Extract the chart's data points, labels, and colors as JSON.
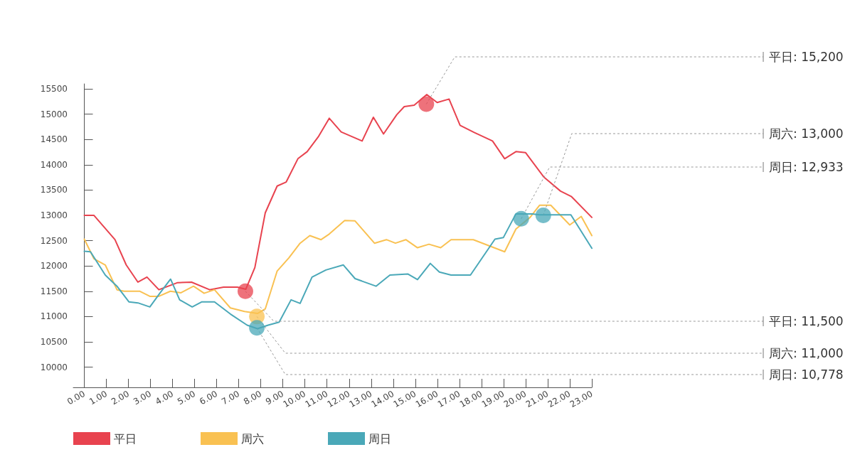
{
  "chart_data": {
    "type": "line",
    "xlim": [
      -0.5,
      23
    ],
    "ylim": [
      9600,
      15600
    ],
    "xticks": [
      {
        "value": 0,
        "label": "0.00"
      },
      {
        "value": 1,
        "label": "1.00"
      },
      {
        "value": 2,
        "label": "2.00"
      },
      {
        "value": 3,
        "label": "3.00"
      },
      {
        "value": 4,
        "label": "4.00"
      },
      {
        "value": 5,
        "label": "5.00"
      },
      {
        "value": 6,
        "label": "6.00"
      },
      {
        "value": 7,
        "label": "7.00"
      },
      {
        "value": 8,
        "label": "8.00"
      },
      {
        "value": 9,
        "label": "9.00"
      },
      {
        "value": 10,
        "label": "10.00"
      },
      {
        "value": 11,
        "label": "11.00"
      },
      {
        "value": 12,
        "label": "12.00"
      },
      {
        "value": 13,
        "label": "13.00"
      },
      {
        "value": 14,
        "label": "14.00"
      },
      {
        "value": 15,
        "label": "15.00"
      },
      {
        "value": 16,
        "label": "16.00"
      },
      {
        "value": 17,
        "label": "17.00"
      },
      {
        "value": 18,
        "label": "18.00"
      },
      {
        "value": 19,
        "label": "19.00"
      },
      {
        "value": 20,
        "label": "20.00"
      },
      {
        "value": 21,
        "label": "21.00"
      },
      {
        "value": 22,
        "label": "22.00"
      },
      {
        "value": 23,
        "label": "23.00"
      }
    ],
    "yticks": [
      10000,
      10500,
      11000,
      11500,
      12000,
      12500,
      13000,
      13500,
      14000,
      14500,
      15000,
      15500
    ],
    "grid": false,
    "legend": "bottom left",
    "marker": "none",
    "line_style": "solid",
    "series": [
      {
        "name": "平日",
        "color": "#e8434f",
        "x": [
          0,
          0.44,
          1.39,
          1.9,
          2.43,
          2.84,
          3.38,
          4.23,
          4.86,
          5.68,
          6.31,
          6.94,
          7.32,
          7.73,
          8.2,
          8.74,
          9.15,
          9.68,
          10.1,
          10.6,
          11.1,
          11.64,
          12.59,
          13.1,
          13.56,
          14.16,
          14.5,
          14.95,
          15.52,
          15.99,
          16.53,
          17.03,
          17.67,
          18.5,
          19.05,
          19.56,
          20,
          20.82,
          21.58,
          22.08,
          23
        ],
        "values": [
          13000,
          13000,
          12520,
          12020,
          11680,
          11780,
          11530,
          11670,
          11680,
          11530,
          11580,
          11580,
          11540,
          11970,
          13050,
          13580,
          13660,
          14120,
          14260,
          14550,
          14920,
          14650,
          14470,
          14940,
          14610,
          14990,
          15150,
          15180,
          15390,
          15230,
          15300,
          14780,
          14640,
          14470,
          14120,
          14260,
          14240,
          13760,
          13480,
          13370,
          12960
        ]
      },
      {
        "name": "周六",
        "color": "#f9c152",
        "x": [
          0,
          0.44,
          0.95,
          1.48,
          1.8,
          2.52,
          2.97,
          3.38,
          3.9,
          4.38,
          4.95,
          5.43,
          5.9,
          6.62,
          7.26,
          7.85,
          8.2,
          8.74,
          9.27,
          9.78,
          10.22,
          10.73,
          11.1,
          11.8,
          12.27,
          13.15,
          13.69,
          14.1,
          14.57,
          15.1,
          15.62,
          16.15,
          16.62,
          17.63,
          19.05,
          19.56,
          20.2,
          20.63,
          21.14,
          22,
          22.52,
          23
        ],
        "values": [
          12530,
          12140,
          12020,
          11530,
          11500,
          11500,
          11400,
          11400,
          11500,
          11470,
          11600,
          11460,
          11530,
          11170,
          11100,
          11060,
          11150,
          11900,
          12160,
          12450,
          12600,
          12520,
          12630,
          12900,
          12890,
          12450,
          12520,
          12450,
          12520,
          12360,
          12430,
          12360,
          12520,
          12520,
          12280,
          12730,
          12960,
          13200,
          13200,
          12810,
          12980,
          12600
        ]
      },
      {
        "name": "周日",
        "color": "#4aa8b8",
        "x": [
          0,
          0.28,
          0.95,
          1.48,
          2.02,
          2.43,
          2.97,
          3.44,
          3.91,
          4.32,
          4.89,
          5.33,
          5.9,
          6.62,
          7.38,
          7.85,
          8.33,
          8.83,
          9.37,
          9.78,
          10.32,
          10.95,
          11.74,
          12.27,
          13.22,
          13.85,
          14.67,
          15.1,
          15.68,
          16.09,
          16.62,
          17.5,
          18.61,
          18.99,
          19.56,
          20.3,
          20.63,
          22.05,
          23
        ],
        "values": [
          12290,
          12280,
          11820,
          11600,
          11290,
          11270,
          11190,
          11470,
          11740,
          11330,
          11190,
          11290,
          11290,
          11050,
          10830,
          10760,
          10830,
          10890,
          11330,
          11260,
          11780,
          11920,
          12020,
          11750,
          11600,
          11820,
          11840,
          11730,
          12050,
          11880,
          11820,
          11820,
          12530,
          12560,
          13030,
          13030,
          13010,
          13010,
          12350
        ]
      }
    ],
    "annotations": [
      {
        "text": "平日: 15,200",
        "x": 15.5,
        "y": 15200
      },
      {
        "text": "周日: 12,933",
        "x": 19.8,
        "y": 12933
      },
      {
        "text": "周六: 13,000",
        "x": 20.8,
        "y": 13000
      },
      {
        "text": "平日: 11,500",
        "x": 7.3,
        "y": 11500
      },
      {
        "text": "周六: 11,000",
        "x": 7.82,
        "y": 11000
      },
      {
        "text": "周日: 10,778",
        "x": 7.82,
        "y": 10778
      }
    ]
  }
}
